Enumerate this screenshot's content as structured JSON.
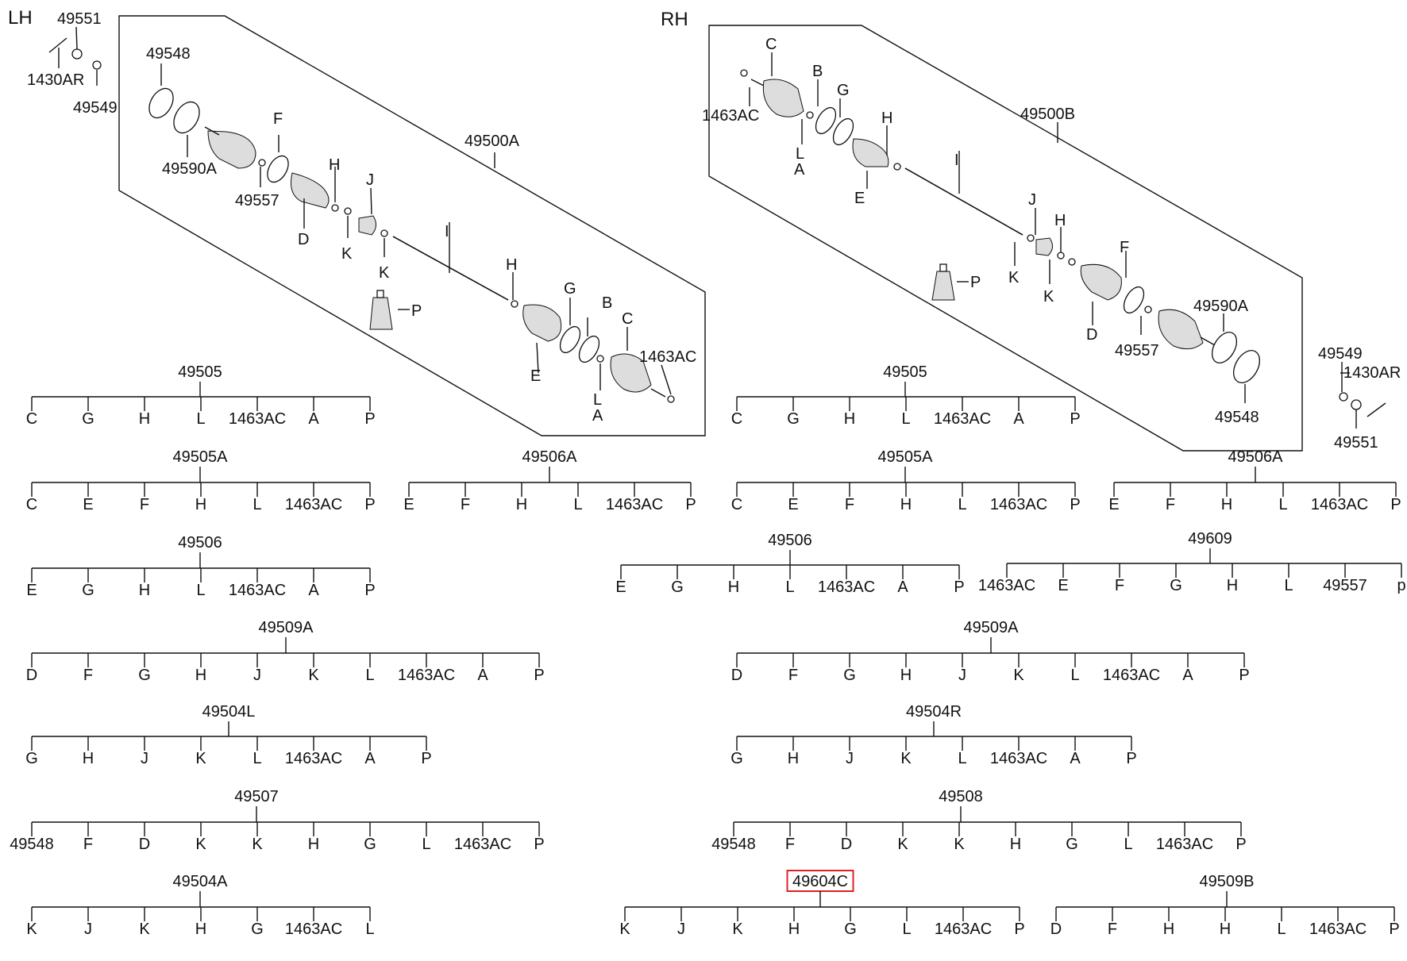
{
  "sides": {
    "lh": "LH",
    "rh": "RH"
  },
  "callouts": {
    "lh": [
      "49551",
      "1430AR",
      "49549",
      "49548",
      "49590A",
      "49557",
      "F",
      "D",
      "H",
      "K",
      "J",
      "K",
      "49500A",
      "I",
      "P",
      "H",
      "G",
      "B",
      "C",
      "1463AC",
      "E",
      "L",
      "A"
    ],
    "rh": [
      "C",
      "1463AC",
      "B",
      "G",
      "L",
      "A",
      "H",
      "E",
      "I",
      "49500B",
      "J",
      "H",
      "K",
      "K",
      "P",
      "F",
      "49590A",
      "D",
      "49557",
      "49548",
      "49549",
      "1430AR",
      "49551"
    ]
  },
  "trees": [
    {
      "label": "49505",
      "children": [
        "C",
        "G",
        "H",
        "L",
        "1463AC",
        "A",
        "P"
      ]
    },
    {
      "label": "49505A",
      "children": [
        "C",
        "E",
        "F",
        "H",
        "L",
        "1463AC",
        "P"
      ]
    },
    {
      "label": "49506A",
      "children": [
        "E",
        "F",
        "H",
        "L",
        "1463AC",
        "P"
      ]
    },
    {
      "label": "49506",
      "children": [
        "E",
        "G",
        "H",
        "L",
        "1463AC",
        "A",
        "P"
      ]
    },
    {
      "label": "49509A",
      "children": [
        "D",
        "F",
        "G",
        "H",
        "J",
        "K",
        "L",
        "1463AC",
        "A",
        "P"
      ]
    },
    {
      "label": "49504L",
      "children": [
        "G",
        "H",
        "J",
        "K",
        "L",
        "1463AC",
        "A",
        "P"
      ]
    },
    {
      "label": "49507",
      "children": [
        "49548",
        "F",
        "D",
        "K",
        "K",
        "H",
        "G",
        "L",
        "1463AC",
        "P"
      ]
    },
    {
      "label": "49504A",
      "children": [
        "K",
        "J",
        "K",
        "H",
        "G",
        "1463AC",
        "L"
      ]
    },
    {
      "label": "49505",
      "children": [
        "C",
        "G",
        "H",
        "L",
        "1463AC",
        "A",
        "P"
      ]
    },
    {
      "label": "49505A",
      "children": [
        "C",
        "E",
        "F",
        "H",
        "L",
        "1463AC",
        "P"
      ]
    },
    {
      "label": "49506A",
      "children": [
        "E",
        "F",
        "H",
        "L",
        "1463AC",
        "P"
      ]
    },
    {
      "label": "49506",
      "children": [
        "E",
        "G",
        "H",
        "L",
        "1463AC",
        "A",
        "P"
      ]
    },
    {
      "label": "49609",
      "children": [
        "1463AC",
        "E",
        "F",
        "G",
        "H",
        "L",
        "49557",
        "p"
      ]
    },
    {
      "label": "49509A",
      "children": [
        "D",
        "F",
        "G",
        "H",
        "J",
        "K",
        "L",
        "1463AC",
        "A",
        "P"
      ]
    },
    {
      "label": "49504R",
      "children": [
        "G",
        "H",
        "J",
        "K",
        "L",
        "1463AC",
        "A",
        "P"
      ]
    },
    {
      "label": "49508",
      "children": [
        "49548",
        "F",
        "D",
        "K",
        "K",
        "H",
        "G",
        "L",
        "1463AC",
        "P"
      ]
    },
    {
      "label": "49604C",
      "highlighted": true,
      "children": [
        "K",
        "J",
        "K",
        "H",
        "G",
        "L",
        "1463AC",
        "P"
      ]
    },
    {
      "label": "49509B",
      "children": [
        "D",
        "F",
        "H",
        "H",
        "L",
        "1463AC",
        "P"
      ]
    }
  ],
  "colors": {
    "line": "#111111",
    "highlight": "#e02020"
  }
}
